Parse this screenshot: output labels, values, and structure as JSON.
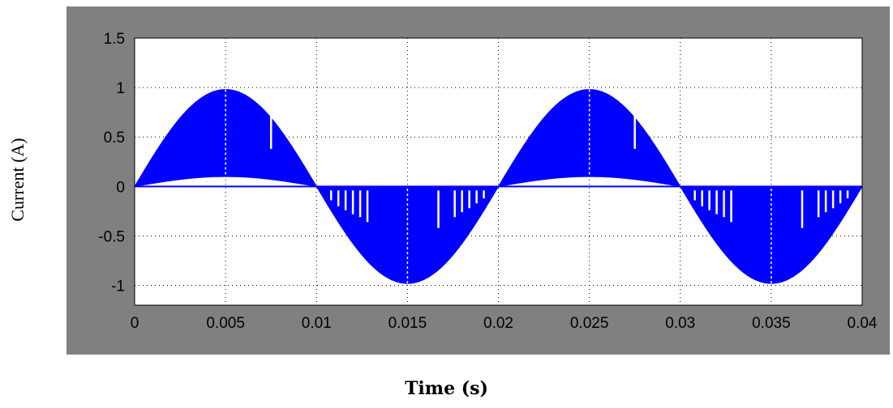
{
  "chart_data": {
    "type": "area",
    "title": "",
    "xlabel": "Time (s)",
    "ylabel": "Current (A)",
    "xlim": [
      0,
      0.04
    ],
    "ylim": [
      -1.2,
      1.5
    ],
    "xticks": [
      0,
      0.005,
      0.01,
      0.015,
      0.02,
      0.025,
      0.03,
      0.035,
      0.04
    ],
    "xtick_labels": [
      "0",
      "0.005",
      "0.01",
      "0.015",
      "0.02",
      "0.025",
      "0.03",
      "0.035",
      "0.04"
    ],
    "yticks": [
      -1,
      -0.5,
      0,
      0.5,
      1,
      1.5
    ],
    "ytick_labels": [
      "-1",
      "-0.5",
      "0",
      "0.5",
      "1",
      "1.5"
    ],
    "grid": true,
    "legend": "none",
    "series": [
      {
        "color": "#0000ff",
        "frequency_hz": 50,
        "amplitude_a": 0.98,
        "fill_inner_envelope_peak_a": 0.1,
        "x": [
          0,
          0.0025,
          0.005,
          0.0075,
          0.01,
          0.0125,
          0.015,
          0.0175,
          0.02,
          0.0225,
          0.025,
          0.0275,
          0.03,
          0.0325,
          0.035,
          0.0375,
          0.04
        ],
        "y": [
          0,
          0.69,
          0.98,
          0.69,
          0,
          -0.69,
          -0.98,
          -0.69,
          0,
          0.69,
          0.98,
          0.69,
          0,
          -0.69,
          -0.98,
          -0.69,
          0
        ]
      }
    ],
    "gap_lines": [
      {
        "x": 0.0075,
        "y_from": 0.72,
        "y_to": 0.38
      },
      {
        "x": 0.0108,
        "y_from": -0.04,
        "y_to": -0.14
      },
      {
        "x": 0.0112,
        "y_from": -0.04,
        "y_to": -0.2
      },
      {
        "x": 0.0116,
        "y_from": -0.04,
        "y_to": -0.24
      },
      {
        "x": 0.012,
        "y_from": -0.04,
        "y_to": -0.28
      },
      {
        "x": 0.0124,
        "y_from": -0.04,
        "y_to": -0.31
      },
      {
        "x": 0.0128,
        "y_from": -0.04,
        "y_to": -0.36
      },
      {
        "x": 0.0167,
        "y_from": -0.04,
        "y_to": -0.42
      },
      {
        "x": 0.0176,
        "y_from": -0.04,
        "y_to": -0.31
      },
      {
        "x": 0.018,
        "y_from": -0.04,
        "y_to": -0.26
      },
      {
        "x": 0.0184,
        "y_from": -0.04,
        "y_to": -0.22
      },
      {
        "x": 0.0188,
        "y_from": -0.04,
        "y_to": -0.17
      },
      {
        "x": 0.0192,
        "y_from": -0.04,
        "y_to": -0.12
      },
      {
        "x": 0.0275,
        "y_from": 0.72,
        "y_to": 0.38
      },
      {
        "x": 0.0308,
        "y_from": -0.04,
        "y_to": -0.14
      },
      {
        "x": 0.0312,
        "y_from": -0.04,
        "y_to": -0.2
      },
      {
        "x": 0.0316,
        "y_from": -0.04,
        "y_to": -0.24
      },
      {
        "x": 0.032,
        "y_from": -0.04,
        "y_to": -0.28
      },
      {
        "x": 0.0324,
        "y_from": -0.04,
        "y_to": -0.31
      },
      {
        "x": 0.0328,
        "y_from": -0.04,
        "y_to": -0.36
      },
      {
        "x": 0.0367,
        "y_from": -0.04,
        "y_to": -0.42
      },
      {
        "x": 0.0376,
        "y_from": -0.04,
        "y_to": -0.31
      },
      {
        "x": 0.038,
        "y_from": -0.04,
        "y_to": -0.26
      },
      {
        "x": 0.0384,
        "y_from": -0.04,
        "y_to": -0.22
      },
      {
        "x": 0.0388,
        "y_from": -0.04,
        "y_to": -0.17
      },
      {
        "x": 0.0392,
        "y_from": -0.04,
        "y_to": -0.12
      }
    ]
  },
  "colors": {
    "frame": "#808080",
    "plot_background": "#ffffff",
    "grid": "#000000"
  }
}
